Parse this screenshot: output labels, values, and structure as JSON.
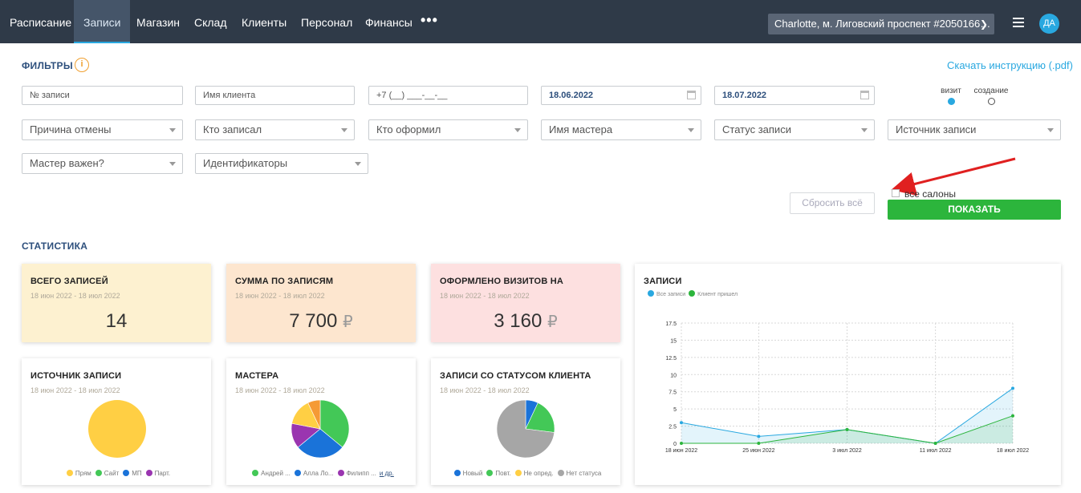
{
  "nav": {
    "items": [
      {
        "label": "Расписание"
      },
      {
        "label": "Записи"
      },
      {
        "label": "Магазин"
      },
      {
        "label": "Склад"
      },
      {
        "label": "Клиенты"
      },
      {
        "label": "Персонал"
      },
      {
        "label": "Финансы"
      }
    ],
    "more": "•••",
    "salon": "Charlotte, м. Лиговский проспект #2050166…",
    "avatar": "ДА",
    "colors": {
      "bar": "#2f3a48",
      "accent": "#29a8e0"
    }
  },
  "filters": {
    "title": "ФИЛЬТРЫ",
    "info": "i",
    "download_link": "Скачать инструкцию (.pdf)",
    "record_no_placeholder": "№ записи",
    "client_name_placeholder": "Имя клиента",
    "phone_placeholder": "+7 (__) ___-__-__",
    "date_from": "18.06.2022",
    "date_to": "18.07.2022",
    "date_mode": {
      "visit_label": "визит",
      "created_label": "создание",
      "selected": "визит"
    },
    "selects": {
      "cancel_reason": "Причина отмены",
      "recorded_by": "Кто записал",
      "issued_by": "Кто оформил",
      "master_name": "Имя мастера",
      "record_status": "Статус записи",
      "record_source": "Источник записи",
      "master_important": "Мастер важен?",
      "identifiers": "Идентификаторы"
    },
    "reset_label": "Сбросить всё",
    "all_salons_label": "все салоны",
    "all_salons_checked": false,
    "show_label": "ПОКАЗАТЬ"
  },
  "stats": {
    "title": "СТАТИСТИКА",
    "total": {
      "title": "ВСЕГО ЗАПИСЕЙ",
      "period": "18 июн 2022 - 18 июл 2022",
      "value": "14",
      "bg": "#fdf1d0"
    },
    "sum": {
      "title": "СУММА ПО ЗАПИСЯМ",
      "period": "18 июн 2022 - 18 июл 2022",
      "value": "7 700",
      "currency": "₽",
      "bg": "#fde6cf"
    },
    "visits": {
      "title": "ОФОРМЛЕНО ВИЗИТОВ НА",
      "period": "18 июн 2022 - 18 июл 2022",
      "value": "3 160",
      "currency": "₽",
      "bg": "#fde0e0"
    },
    "source": {
      "title": "ИСТОЧНИК ЗАПИСИ",
      "period": "18 июн 2022 - 18 июл 2022",
      "legend": [
        {
          "label": "Прям",
          "color": "#ffcf44"
        },
        {
          "label": "Сайт",
          "color": "#43c857"
        },
        {
          "label": "МП",
          "color": "#1a73d9"
        },
        {
          "label": "Парт.",
          "color": "#9a35b0"
        }
      ]
    },
    "masters": {
      "title": "МАСТЕРА",
      "period": "18 июн 2022 - 18 июл 2022",
      "legend": [
        {
          "label": "Андрей ...",
          "color": "#43c857"
        },
        {
          "label": "Алла Ло...",
          "color": "#1a73d9"
        },
        {
          "label": "Филипп ...",
          "color": "#9a35b0"
        }
      ],
      "more": "и др."
    },
    "client_status": {
      "title": "ЗАПИСИ СО СТАТУСОМ КЛИЕНТА",
      "period": "18 июн 2022 - 18 июл 2022",
      "legend": [
        {
          "label": "Новый",
          "color": "#1a73d9"
        },
        {
          "label": "Повт.",
          "color": "#43c857"
        },
        {
          "label": "Не опред.",
          "color": "#ffcf44"
        },
        {
          "label": "Нет статуса",
          "color": "#a6a6a6"
        }
      ]
    },
    "records_chart_title": "ЗАПИСИ"
  },
  "chart_data": [
    {
      "type": "pie",
      "title": "ИСТОЧНИК ЗАПИСИ",
      "categories": [
        "Прям",
        "Сайт",
        "МП",
        "Парт."
      ],
      "values": [
        100,
        0,
        0,
        0
      ],
      "colors": [
        "#ffcf44",
        "#43c857",
        "#1a73d9",
        "#9a35b0"
      ]
    },
    {
      "type": "pie",
      "title": "МАСТЕРА",
      "categories": [
        "Андрей ...",
        "Алла Ло...",
        "Филипп ...",
        "",
        ""
      ],
      "values": [
        36,
        28,
        14,
        15,
        7
      ],
      "colors": [
        "#43c857",
        "#1a73d9",
        "#9a35b0",
        "#ffcf44",
        "#f59a35"
      ]
    },
    {
      "type": "pie",
      "title": "ЗАПИСИ СО СТАТУСОМ КЛИЕНТА",
      "categories": [
        "Новый",
        "Повт.",
        "Не опред.",
        "Нет статуса"
      ],
      "values": [
        7,
        20,
        0,
        73
      ],
      "colors": [
        "#1a73d9",
        "#43c857",
        "#ffcf44",
        "#a6a6a6"
      ]
    },
    {
      "type": "area",
      "title": "ЗАПИСИ",
      "x": [
        "18 июн 2022",
        "25 июн 2022",
        "3 июл 2022",
        "11 июл 2022",
        "18 июл 2022"
      ],
      "x_days": [
        0,
        7,
        15,
        23,
        30
      ],
      "series": [
        {
          "name": "Все записи",
          "color": "#29a8e0",
          "values": [
            3,
            1,
            2,
            0,
            8
          ]
        },
        {
          "name": "Клиент пришел",
          "color": "#2cb53c",
          "values": [
            0,
            0,
            2,
            0,
            4
          ]
        }
      ],
      "yticks": [
        "17.5",
        "15",
        "12.5",
        "10",
        "7.5",
        "5",
        "2.5",
        "0"
      ],
      "ylim": [
        0,
        17.5
      ],
      "grid": true,
      "legend": "top-left"
    }
  ]
}
